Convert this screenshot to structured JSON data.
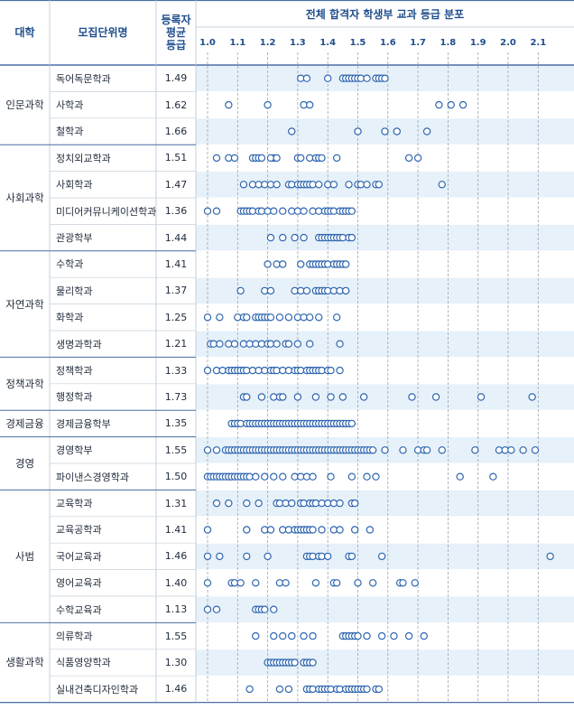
{
  "header": {
    "col_univ": "대학",
    "col_dept": "모집단위명",
    "col_avg": "등록자\n평균\n등급",
    "col_dist": "전체 합격자 학생부 교과 등급 분포"
  },
  "chart_data": {
    "type": "scatter",
    "x_ticks": [
      "1.0",
      "1.1",
      "1.2",
      "1.3",
      "1.4",
      "1.5",
      "1.6",
      "1.7",
      "1.8",
      "1.9",
      "2.0",
      "2.1"
    ],
    "xlim": [
      1.0,
      2.15
    ],
    "groups": [
      {
        "univ": "인문과학",
        "rows": [
          {
            "dept": "독어독문학과",
            "avg": "1.49",
            "points": [
              1.31,
              1.33,
              1.4,
              1.45,
              1.46,
              1.47,
              1.48,
              1.49,
              1.5,
              1.51,
              1.53,
              1.56,
              1.57,
              1.58,
              1.59
            ]
          },
          {
            "dept": "사학과",
            "avg": "1.62",
            "points": [
              1.07,
              1.2,
              1.32,
              1.34,
              1.77,
              1.81,
              1.85
            ]
          },
          {
            "dept": "철학과",
            "avg": "1.66",
            "points": [
              1.28,
              1.5,
              1.59,
              1.63,
              1.73
            ]
          }
        ]
      },
      {
        "univ": "사회과학",
        "rows": [
          {
            "dept": "정치외교학과",
            "avg": "1.51",
            "points": [
              1.03,
              1.07,
              1.09,
              1.15,
              1.16,
              1.17,
              1.18,
              1.22,
              1.21,
              1.23,
              1.3,
              1.31,
              1.34,
              1.36,
              1.37,
              1.38,
              1.43,
              1.67,
              1.7
            ]
          },
          {
            "dept": "사회학과",
            "avg": "1.47",
            "points": [
              1.12,
              1.15,
              1.17,
              1.19,
              1.21,
              1.23,
              1.27,
              1.28,
              1.3,
              1.31,
              1.32,
              1.33,
              1.34,
              1.35,
              1.37,
              1.4,
              1.42,
              1.47,
              1.5,
              1.51,
              1.53,
              1.56,
              1.57,
              1.78
            ]
          },
          {
            "dept": "미디어커뮤니케이션학과",
            "avg": "1.36",
            "points": [
              1.0,
              1.03,
              1.11,
              1.12,
              1.13,
              1.14,
              1.15,
              1.17,
              1.18,
              1.2,
              1.22,
              1.25,
              1.28,
              1.3,
              1.32,
              1.35,
              1.37,
              1.39,
              1.4,
              1.41,
              1.42,
              1.44,
              1.45,
              1.46,
              1.47,
              1.48
            ]
          },
          {
            "dept": "관광학부",
            "avg": "1.44",
            "points": [
              1.21,
              1.25,
              1.29,
              1.32,
              1.37,
              1.38,
              1.39,
              1.4,
              1.41,
              1.42,
              1.43,
              1.44,
              1.45,
              1.47,
              1.48
            ]
          }
        ]
      },
      {
        "univ": "자연과학",
        "rows": [
          {
            "dept": "수학과",
            "avg": "1.41",
            "points": [
              1.2,
              1.23,
              1.25,
              1.31,
              1.34,
              1.35,
              1.36,
              1.37,
              1.38,
              1.39,
              1.4,
              1.42,
              1.43,
              1.44,
              1.45,
              1.46
            ]
          },
          {
            "dept": "물리학과",
            "avg": "1.37",
            "points": [
              1.11,
              1.19,
              1.21,
              1.29,
              1.31,
              1.33,
              1.36,
              1.37,
              1.38,
              1.39,
              1.4,
              1.42,
              1.44,
              1.46
            ]
          },
          {
            "dept": "화학과",
            "avg": "1.25",
            "points": [
              1.0,
              1.04,
              1.1,
              1.12,
              1.13,
              1.16,
              1.17,
              1.18,
              1.19,
              1.2,
              1.21,
              1.24,
              1.27,
              1.3,
              1.32,
              1.34,
              1.37,
              1.43
            ]
          },
          {
            "dept": "생명과학과",
            "avg": "1.21",
            "points": [
              1.01,
              1.02,
              1.04,
              1.07,
              1.09,
              1.12,
              1.14,
              1.16,
              1.18,
              1.2,
              1.21,
              1.23,
              1.26,
              1.27,
              1.3,
              1.34,
              1.44
            ]
          }
        ]
      },
      {
        "univ": "정책과학",
        "rows": [
          {
            "dept": "정책학과",
            "avg": "1.33",
            "points": [
              1.0,
              1.03,
              1.05,
              1.07,
              1.08,
              1.09,
              1.1,
              1.11,
              1.12,
              1.13,
              1.15,
              1.17,
              1.19,
              1.21,
              1.22,
              1.23,
              1.25,
              1.27,
              1.29,
              1.3,
              1.31,
              1.33,
              1.34,
              1.35,
              1.36,
              1.37,
              1.38,
              1.4,
              1.41,
              1.44
            ]
          },
          {
            "dept": "행정학과",
            "avg": "1.73",
            "points": [
              1.12,
              1.13,
              1.18,
              1.22,
              1.24,
              1.25,
              1.3,
              1.36,
              1.41,
              1.45,
              1.52,
              1.68,
              1.76,
              1.91,
              2.08
            ]
          }
        ]
      },
      {
        "univ": "경제금융",
        "rows": [
          {
            "dept": "경제금융학부",
            "avg": "1.35",
            "points": [
              1.08,
              1.09,
              1.1,
              1.11,
              1.13,
              1.14,
              1.15,
              1.16,
              1.17,
              1.18,
              1.19,
              1.2,
              1.21,
              1.22,
              1.23,
              1.24,
              1.25,
              1.26,
              1.27,
              1.28,
              1.29,
              1.3,
              1.31,
              1.32,
              1.33,
              1.34,
              1.35,
              1.36,
              1.37,
              1.38,
              1.39,
              1.4,
              1.41,
              1.42,
              1.43,
              1.44,
              1.45,
              1.46,
              1.47,
              1.48
            ]
          }
        ]
      },
      {
        "univ": "경영",
        "rows": [
          {
            "dept": "경영학부",
            "avg": "1.55",
            "points": [
              1.0,
              1.03,
              1.06,
              1.07,
              1.08,
              1.09,
              1.1,
              1.11,
              1.12,
              1.13,
              1.14,
              1.15,
              1.16,
              1.17,
              1.18,
              1.19,
              1.2,
              1.21,
              1.22,
              1.23,
              1.24,
              1.25,
              1.26,
              1.27,
              1.28,
              1.29,
              1.3,
              1.31,
              1.32,
              1.33,
              1.34,
              1.35,
              1.36,
              1.37,
              1.38,
              1.39,
              1.4,
              1.41,
              1.42,
              1.43,
              1.44,
              1.45,
              1.46,
              1.47,
              1.48,
              1.49,
              1.5,
              1.51,
              1.52,
              1.53,
              1.54,
              1.55,
              1.59,
              1.65,
              1.7,
              1.72,
              1.73,
              1.78,
              1.89,
              1.97,
              1.99,
              2.01,
              2.05,
              2.09
            ]
          },
          {
            "dept": "파이낸스경영학과",
            "avg": "1.50",
            "points": [
              1.0,
              1.01,
              1.02,
              1.03,
              1.04,
              1.05,
              1.06,
              1.07,
              1.08,
              1.09,
              1.1,
              1.11,
              1.12,
              1.13,
              1.14,
              1.16,
              1.19,
              1.22,
              1.25,
              1.29,
              1.31,
              1.33,
              1.35,
              1.41,
              1.48,
              1.53,
              1.56,
              1.84,
              1.95
            ]
          }
        ]
      },
      {
        "univ": "사범",
        "rows": [
          {
            "dept": "교육학과",
            "avg": "1.31",
            "points": [
              1.03,
              1.07,
              1.13,
              1.17,
              1.23,
              1.24,
              1.26,
              1.28,
              1.31,
              1.32,
              1.34,
              1.35,
              1.36,
              1.38,
              1.4,
              1.42,
              1.44,
              1.48,
              1.49
            ]
          },
          {
            "dept": "교육공학과",
            "avg": "1.41",
            "points": [
              1.0,
              1.13,
              1.19,
              1.21,
              1.25,
              1.27,
              1.29,
              1.3,
              1.31,
              1.32,
              1.33,
              1.34,
              1.35,
              1.38,
              1.42,
              1.44,
              1.49,
              1.54
            ]
          },
          {
            "dept": "국어교육과",
            "avg": "1.46",
            "points": [
              1.0,
              1.04,
              1.13,
              1.2,
              1.33,
              1.34,
              1.35,
              1.37,
              1.38,
              1.4,
              1.47,
              1.48,
              1.58,
              2.14
            ]
          },
          {
            "dept": "영어교육과",
            "avg": "1.40",
            "points": [
              1.0,
              1.08,
              1.09,
              1.11,
              1.16,
              1.24,
              1.26,
              1.36,
              1.42,
              1.43,
              1.5,
              1.55,
              1.64,
              1.65,
              1.69
            ]
          },
          {
            "dept": "수학교육과",
            "avg": "1.13",
            "points": [
              1.0,
              1.03,
              1.16,
              1.17,
              1.18,
              1.19,
              1.22
            ]
          }
        ]
      },
      {
        "univ": "생활과학",
        "rows": [
          {
            "dept": "의류학과",
            "avg": "1.55",
            "points": [
              1.16,
              1.22,
              1.25,
              1.28,
              1.32,
              1.35,
              1.45,
              1.46,
              1.47,
              1.48,
              1.49,
              1.5,
              1.53,
              1.58,
              1.62,
              1.67,
              1.72
            ]
          },
          {
            "dept": "식품영양학과",
            "avg": "1.30",
            "points": [
              1.2,
              1.21,
              1.22,
              1.23,
              1.24,
              1.25,
              1.26,
              1.27,
              1.28,
              1.29,
              1.32,
              1.33,
              1.34,
              1.35
            ]
          },
          {
            "dept": "실내건축디자인학과",
            "avg": "1.46",
            "points": [
              1.14,
              1.24,
              1.27,
              1.33,
              1.34,
              1.35,
              1.37,
              1.38,
              1.39,
              1.4,
              1.41,
              1.43,
              1.44,
              1.46,
              1.47,
              1.48,
              1.49,
              1.5,
              1.51,
              1.52,
              1.53,
              1.56,
              1.57
            ]
          }
        ]
      }
    ]
  },
  "colors": {
    "accent": "#1f4e8c",
    "point_stroke": "#2f66b0",
    "stripe": "#e6f1fa",
    "grid": "#9aa4b2",
    "rule": "#4a6fa5"
  }
}
